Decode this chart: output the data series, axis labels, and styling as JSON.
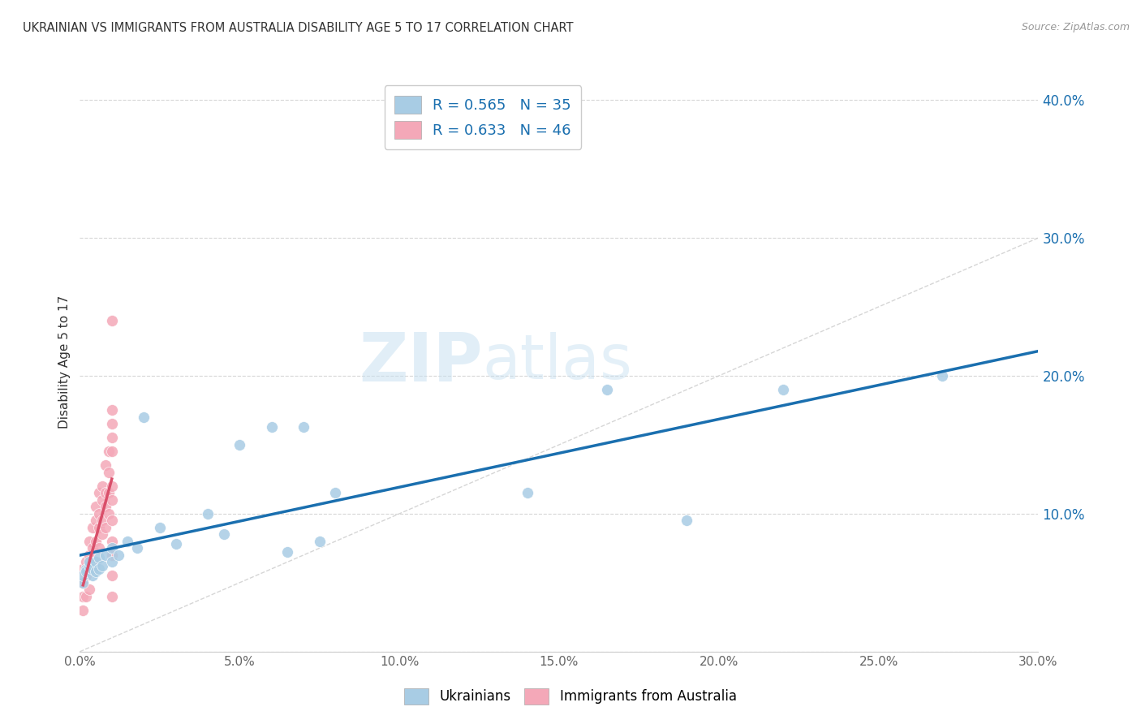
{
  "title": "UKRAINIAN VS IMMIGRANTS FROM AUSTRALIA DISABILITY AGE 5 TO 17 CORRELATION CHART",
  "source": "Source: ZipAtlas.com",
  "ylabel": "Disability Age 5 to 17",
  "xlim": [
    0.0,
    0.3
  ],
  "ylim": [
    0.0,
    0.42
  ],
  "xticks": [
    0.0,
    0.05,
    0.1,
    0.15,
    0.2,
    0.25,
    0.3
  ],
  "yticks": [
    0.0,
    0.1,
    0.2,
    0.3,
    0.4
  ],
  "watermark_zip": "ZIP",
  "watermark_atlas": "atlas",
  "blue_color": "#a8cce4",
  "pink_color": "#f4a8b8",
  "line_blue": "#1a6faf",
  "line_pink": "#d94f6a",
  "diag_color": "#cccccc",
  "ukrainians_x": [
    0.001,
    0.001,
    0.002,
    0.002,
    0.003,
    0.003,
    0.004,
    0.004,
    0.005,
    0.005,
    0.006,
    0.006,
    0.007,
    0.008,
    0.01,
    0.01,
    0.012,
    0.015,
    0.018,
    0.02,
    0.025,
    0.03,
    0.04,
    0.045,
    0.05,
    0.06,
    0.065,
    0.07,
    0.075,
    0.08,
    0.14,
    0.165,
    0.19,
    0.22,
    0.27
  ],
  "ukrainians_y": [
    0.05,
    0.055,
    0.06,
    0.058,
    0.062,
    0.065,
    0.055,
    0.06,
    0.058,
    0.065,
    0.06,
    0.068,
    0.062,
    0.07,
    0.065,
    0.075,
    0.07,
    0.08,
    0.075,
    0.17,
    0.09,
    0.078,
    0.1,
    0.085,
    0.15,
    0.163,
    0.072,
    0.163,
    0.08,
    0.115,
    0.115,
    0.19,
    0.095,
    0.19,
    0.2
  ],
  "australia_x": [
    0.001,
    0.001,
    0.001,
    0.001,
    0.002,
    0.002,
    0.002,
    0.003,
    0.003,
    0.003,
    0.003,
    0.004,
    0.004,
    0.004,
    0.005,
    0.005,
    0.005,
    0.005,
    0.006,
    0.006,
    0.006,
    0.006,
    0.007,
    0.007,
    0.007,
    0.007,
    0.008,
    0.008,
    0.008,
    0.008,
    0.009,
    0.009,
    0.009,
    0.009,
    0.01,
    0.01,
    0.01,
    0.01,
    0.01,
    0.01,
    0.01,
    0.01,
    0.01,
    0.01,
    0.01,
    0.01
  ],
  "australia_y": [
    0.03,
    0.04,
    0.05,
    0.06,
    0.04,
    0.055,
    0.065,
    0.045,
    0.06,
    0.07,
    0.08,
    0.06,
    0.075,
    0.09,
    0.065,
    0.08,
    0.095,
    0.105,
    0.075,
    0.09,
    0.1,
    0.115,
    0.085,
    0.095,
    0.11,
    0.12,
    0.09,
    0.105,
    0.115,
    0.135,
    0.1,
    0.115,
    0.13,
    0.145,
    0.04,
    0.055,
    0.07,
    0.08,
    0.095,
    0.11,
    0.12,
    0.145,
    0.155,
    0.165,
    0.175,
    0.24
  ],
  "legend_text1": "R = 0.565   N = 35",
  "legend_text2": "R = 0.633   N = 46"
}
